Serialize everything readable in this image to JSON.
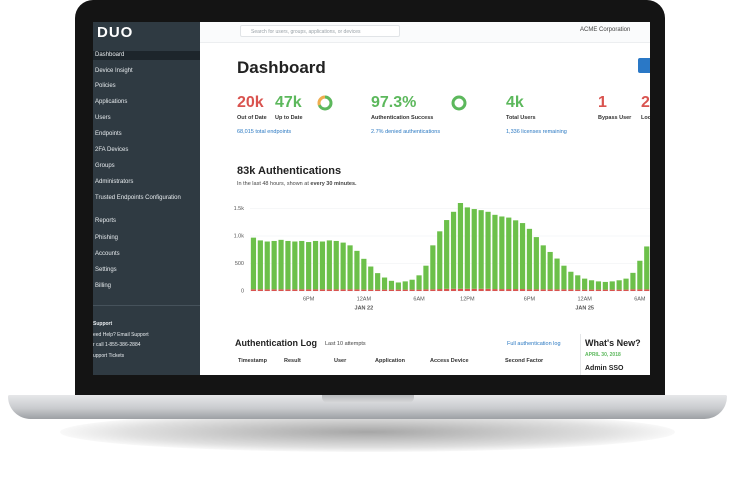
{
  "sidebar": {
    "logo": "DUO",
    "menu": [
      "Dashboard",
      "Device Insight",
      "Policies",
      "Applications",
      "Users",
      "Endpoints",
      "2FA Devices",
      "Groups",
      "Administrators",
      "Trusted Endpoints Configuration",
      "Reports",
      "Phishing",
      "Accounts",
      "Settings",
      "Billing"
    ],
    "support": {
      "title": "Support",
      "lines": [
        "eed Help? Email Support",
        "r call 1-855-386-2884",
        "upport Tickets"
      ]
    }
  },
  "topbar": {
    "search_placeholder": "Search for users, groups, applications, or devices",
    "account": "ACME Corporation"
  },
  "header": {
    "title": "Dashboard"
  },
  "stats": [
    {
      "value": "20k",
      "label": "Out of Date",
      "link": "68,015 total endpoints"
    },
    {
      "value": "47k",
      "label": "Up to Date"
    },
    {
      "value": "97.3%",
      "label": "Authentication Success",
      "link": "2.7% denied authentications"
    },
    {
      "value": "4k",
      "label": "Total Users",
      "link": "1,336 licenses remaining"
    },
    {
      "value": "1",
      "label": "Bypass User"
    },
    {
      "value": "2",
      "label": "Loc"
    }
  ],
  "chart_data": {
    "type": "bar",
    "stacked": true,
    "title": "83k Authentications",
    "subtitle": "In the last 48 hours, shown at ",
    "subtitle_emphasis": "every 30 minutes.",
    "categories": [
      null,
      null,
      null,
      null,
      null,
      null,
      null,
      null,
      "6PM",
      null,
      null,
      null,
      null,
      null,
      null,
      null,
      "12AM",
      null,
      null,
      null,
      null,
      null,
      null,
      null,
      "6AM",
      null,
      null,
      null,
      null,
      null,
      null,
      "12PM",
      null,
      null,
      null,
      null,
      null,
      null,
      null,
      null,
      "6PM",
      null,
      null,
      null,
      null,
      null,
      null,
      null,
      "12AM",
      null,
      null,
      null,
      null,
      null,
      null,
      null,
      "6AM",
      null
    ],
    "date_labels": [
      null,
      null,
      null,
      null,
      null,
      null,
      null,
      null,
      null,
      null,
      null,
      null,
      null,
      null,
      null,
      null,
      "JAN 22",
      null,
      null,
      null,
      null,
      null,
      null,
      null,
      null,
      null,
      null,
      null,
      null,
      null,
      null,
      null,
      null,
      null,
      null,
      null,
      null,
      null,
      null,
      null,
      null,
      null,
      null,
      null,
      null,
      null,
      null,
      null,
      "JAN 25",
      null,
      null,
      null,
      null,
      null,
      null,
      null,
      null,
      null
    ],
    "series": [
      {
        "color": "#d9534f",
        "values": [
          30,
          30,
          30,
          30,
          30,
          30,
          30,
          30,
          30,
          30,
          30,
          30,
          30,
          30,
          30,
          30,
          25,
          25,
          25,
          25,
          25,
          25,
          25,
          25,
          25,
          30,
          30,
          35,
          40,
          40,
          40,
          40,
          40,
          40,
          40,
          35,
          35,
          35,
          35,
          35,
          30,
          30,
          30,
          30,
          30,
          30,
          30,
          25,
          25,
          25,
          25,
          25,
          25,
          25,
          25,
          30,
          30,
          30
        ]
      },
      {
        "color": "#6cc04a",
        "values": [
          940,
          890,
          870,
          880,
          900,
          880,
          870,
          880,
          860,
          880,
          870,
          890,
          880,
          850,
          800,
          700,
          560,
          420,
          300,
          220,
          160,
          130,
          150,
          180,
          260,
          430,
          800,
          1050,
          1250,
          1400,
          1560,
          1480,
          1450,
          1430,
          1400,
          1350,
          1320,
          1300,
          1250,
          1200,
          1100,
          950,
          800,
          680,
          560,
          430,
          320,
          260,
          200,
          170,
          150,
          140,
          150,
          170,
          200,
          300,
          520,
          780
        ]
      }
    ],
    "ylim": [
      0,
      1600
    ],
    "yticks": [
      0,
      500,
      {
        "value": 1000,
        "label": "1.0k"
      },
      {
        "value": 1500,
        "label": "1.5k"
      }
    ],
    "grid": true
  },
  "auth_log": {
    "title": "Authentication Log",
    "subtitle": "Last 10 attempts",
    "link": "Full authentication log",
    "columns": [
      "Timestamp",
      "Result",
      "User",
      "Application",
      "Access Device",
      "Second Factor"
    ]
  },
  "whats_new": {
    "title": "What's New?",
    "date": "APRIL 30, 2018",
    "item": "Admin SSO"
  }
}
